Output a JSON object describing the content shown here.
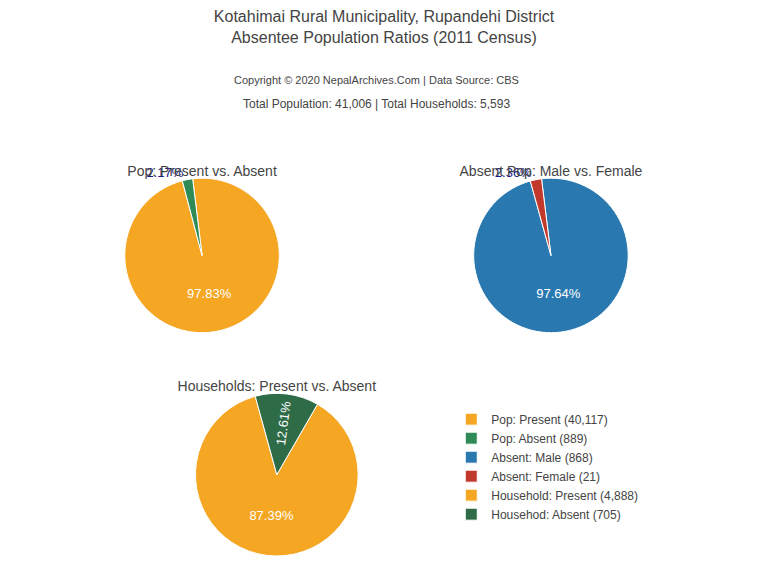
{
  "title": "Kotahimai Rural Municipality, Rupandehi District",
  "subtitle": "Absentee Population Ratios (2011 Census)",
  "annotations": [
    "Copyright © 2020 NepalArchives.Com | Data Source: CBS",
    "Total Population: 41,006 | Total Households: 5,593"
  ],
  "legend": "right",
  "chart_data": [
    {
      "type": "pie",
      "title": "Pop: Present vs. Absent",
      "categories": [
        "Pop: Present (40,117)",
        "Pop: Absent (889)"
      ],
      "values": [
        97.83,
        2.17
      ],
      "value_labels": [
        "97.83%",
        "2.17%"
      ],
      "colors": [
        "#f5a623",
        "#2e8b57"
      ],
      "data_labels": true
    },
    {
      "type": "pie",
      "title": "Absent Pop: Male vs. Female",
      "categories": [
        "Absent: Male (868)",
        "Absent: Female (21)"
      ],
      "values": [
        97.64,
        2.36
      ],
      "value_labels": [
        "97.64%",
        "2.36%"
      ],
      "colors": [
        "#2979b0",
        "#c0392b"
      ],
      "data_labels": true
    },
    {
      "type": "pie",
      "title": "Households: Present vs. Absent",
      "categories": [
        "Household: Present (4,888)",
        "Househod: Absent (705)"
      ],
      "values": [
        87.39,
        12.61
      ],
      "value_labels": [
        "87.39%",
        "12.61%"
      ],
      "colors": [
        "#f5a623",
        "#2e6b47"
      ],
      "data_labels": true
    }
  ]
}
